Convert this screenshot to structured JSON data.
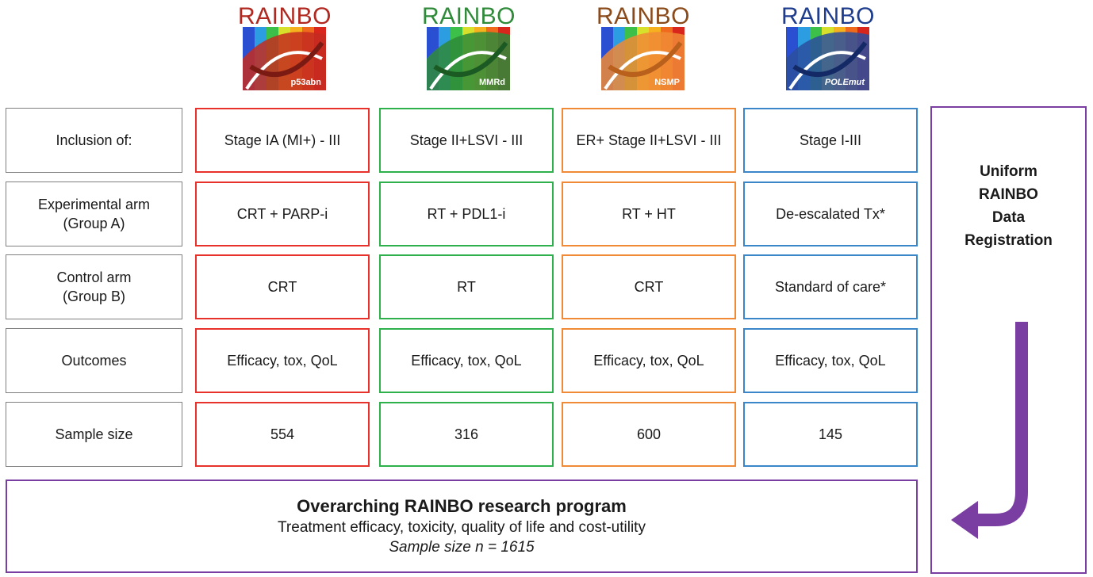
{
  "logos": [
    {
      "title": "RAINBO",
      "subtitle": "p53abn",
      "color": "#b0281f",
      "accent": "#d23424"
    },
    {
      "title": "RAINBO",
      "subtitle": "MMRd",
      "color": "#2f8a3a",
      "accent": "#2f8a3a"
    },
    {
      "title": "RAINBO",
      "subtitle": "NSMP",
      "color": "#8a4a1a",
      "accent": "#f08a36"
    },
    {
      "title": "RAINBO",
      "subtitle": "POLEmut",
      "color": "#1f3d8f",
      "accent": "#2a4f9e"
    }
  ],
  "rows": [
    {
      "label": "Inclusion of:",
      "cells": [
        "Stage IA (MI+) - III",
        "Stage II+LSVI - III",
        "ER+ Stage II+LSVI - III",
        "Stage I-III"
      ]
    },
    {
      "label": "Experimental arm\n(Group A)",
      "cells": [
        "CRT + PARP-i",
        "RT + PDL1-i",
        "RT + HT",
        "De-escalated Tx*"
      ]
    },
    {
      "label": "Control arm\n(Group B)",
      "cells": [
        "CRT",
        "RT",
        "CRT",
        "Standard of care*"
      ]
    },
    {
      "label": "Outcomes",
      "cells": [
        "Efficacy, tox, QoL",
        "Efficacy, tox, QoL",
        "Efficacy, tox, QoL",
        "Efficacy, tox, QoL"
      ]
    },
    {
      "label": "Sample size",
      "cells": [
        "554",
        "316",
        "600",
        "145"
      ]
    }
  ],
  "program": {
    "title": "Overarching RAINBO research program",
    "line": "Treatment efficacy, toxicity, quality of life and cost-utility",
    "sample": "Sample size n = 1615"
  },
  "registration": {
    "text": "Uniform\nRAINBO\nData\nRegistration"
  },
  "colors": {
    "p53abn": "#e8312b",
    "mmrd": "#2eb04d",
    "nsmp": "#f08a36",
    "polemut": "#3b86c8",
    "program": "#7a3ea3",
    "arrow": "#7a3ea3"
  }
}
